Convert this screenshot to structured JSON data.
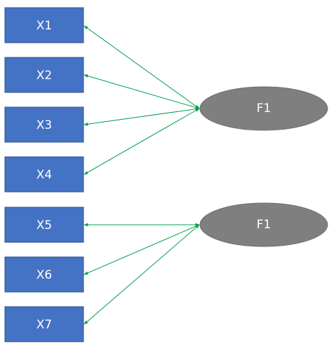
{
  "diagram": {
    "indicators": [
      {
        "id": "x1",
        "label": "X1"
      },
      {
        "id": "x2",
        "label": "X2"
      },
      {
        "id": "x3",
        "label": "X3"
      },
      {
        "id": "x4",
        "label": "X4"
      },
      {
        "id": "x5",
        "label": "X5"
      },
      {
        "id": "x6",
        "label": "X6"
      },
      {
        "id": "x7",
        "label": "X7"
      }
    ],
    "factors": [
      {
        "id": "factor-top",
        "label": "F1"
      },
      {
        "id": "factor-bottom",
        "label": "F1"
      }
    ],
    "edges": [
      {
        "from": "factor-top",
        "to": "x1"
      },
      {
        "from": "factor-top",
        "to": "x2"
      },
      {
        "from": "factor-top",
        "to": "x3"
      },
      {
        "from": "factor-top",
        "to": "x4"
      },
      {
        "from": "factor-bottom",
        "to": "x5"
      },
      {
        "from": "factor-bottom",
        "to": "x6"
      },
      {
        "from": "factor-bottom",
        "to": "x7"
      }
    ],
    "colors": {
      "box": "#4472C4",
      "ellipse": "#7F7F7F",
      "arrow": "#00A050"
    }
  }
}
